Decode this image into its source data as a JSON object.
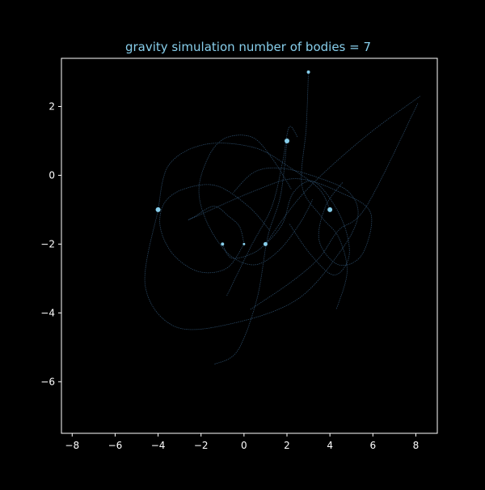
{
  "chart_data": {
    "type": "scatter",
    "title": "gravity simulation number of bodies = 7",
    "xlabel": "",
    "ylabel": "",
    "xlim": [
      -8.5,
      9
    ],
    "ylim": [
      -7.5,
      3.4
    ],
    "xticks": [
      -8,
      -6,
      -4,
      -2,
      0,
      2,
      4,
      6,
      8
    ],
    "yticks": [
      2,
      0,
      -2,
      -4,
      -6
    ],
    "grid": false,
    "colors": {
      "background": "#000000",
      "axes": "#ffffff",
      "title": "#87CEEB",
      "body": "#87CEEB",
      "trail": "#2a4a66"
    },
    "bodies": [
      {
        "x": 3,
        "y": 3,
        "size": 2
      },
      {
        "x": 2,
        "y": 1,
        "size": 3
      },
      {
        "x": -4,
        "y": -1,
        "size": 3
      },
      {
        "x": 4,
        "y": -1,
        "size": 3
      },
      {
        "x": -1,
        "y": -2,
        "size": 2
      },
      {
        "x": 0,
        "y": -2,
        "size": 1.5
      },
      {
        "x": 1,
        "y": -2,
        "size": 2.5
      }
    ],
    "trails": [
      [
        [
          -4,
          -1
        ],
        [
          -4.6,
          -3.2
        ],
        [
          -3.2,
          -4.4
        ],
        [
          -0.5,
          -4.3
        ],
        [
          2.5,
          -3.6
        ],
        [
          4.5,
          -2.2
        ],
        [
          5.3,
          -1.2
        ],
        [
          4.9,
          -0.5
        ],
        [
          3.6,
          -0.1
        ],
        [
          1.8,
          0.2
        ],
        [
          0.5,
          0.1
        ],
        [
          -0.5,
          -0.5
        ]
      ],
      [
        [
          -4,
          -1
        ],
        [
          -3.5,
          0.3
        ],
        [
          -1.8,
          0.9
        ],
        [
          0.5,
          0.8
        ],
        [
          2.2,
          0.2
        ],
        [
          3.5,
          -0.4
        ],
        [
          4,
          -1
        ]
      ],
      [
        [
          3,
          3
        ],
        [
          2.9,
          1.4
        ],
        [
          2.7,
          -0.3
        ],
        [
          3.6,
          -1.2
        ],
        [
          4.4,
          -1.8
        ],
        [
          4.8,
          -2.8
        ],
        [
          4.3,
          -3.9
        ]
      ],
      [
        [
          2,
          1
        ],
        [
          1.7,
          -0.6
        ],
        [
          1.1,
          -1.8
        ],
        [
          0.6,
          -3.6
        ],
        [
          -0.3,
          -5.1
        ],
        [
          -1.4,
          -5.5
        ]
      ],
      [
        [
          -1,
          -2
        ],
        [
          -0.6,
          -2.4
        ],
        [
          0.3,
          -2.3
        ],
        [
          1,
          -2
        ],
        [
          1.8,
          -1.4
        ],
        [
          2.3,
          -0.5
        ],
        [
          3.3,
          -0.2
        ],
        [
          4.5,
          -1.2
        ],
        [
          4.9,
          -2.3
        ],
        [
          4.2,
          -2.9
        ],
        [
          3.1,
          -2.3
        ],
        [
          2.1,
          -1.4
        ]
      ],
      [
        [
          0,
          -2
        ],
        [
          -0.2,
          -1.5
        ],
        [
          -0.7,
          -1.2
        ],
        [
          -1.4,
          -0.9
        ],
        [
          -2.3,
          -1.2
        ],
        [
          -2.6,
          -1.3
        ]
      ],
      [
        [
          1,
          -2
        ],
        [
          2.8,
          -0.5
        ],
        [
          5.6,
          1.1
        ],
        [
          8.2,
          2.3
        ]
      ],
      [
        [
          -2.6,
          -1.3
        ],
        [
          0.7,
          -0.4
        ],
        [
          2.5,
          -0.1
        ],
        [
          4.5,
          -0.5
        ],
        [
          5.9,
          -1.1
        ],
        [
          5.5,
          -2.3
        ],
        [
          4.4,
          -2.6
        ],
        [
          3.5,
          -1.9
        ],
        [
          3.8,
          -0.9
        ],
        [
          4.6,
          -0.2
        ]
      ],
      [
        [
          2.2,
          -0.4
        ],
        [
          1.3,
          0.5
        ],
        [
          0.4,
          1.1
        ],
        [
          -0.8,
          1.1
        ],
        [
          -1.6,
          0.6
        ],
        [
          -2.1,
          -0.4
        ],
        [
          -1.7,
          -1.4
        ],
        [
          -0.7,
          -2.3
        ],
        [
          0.5,
          -2.6
        ],
        [
          1.6,
          -2.2
        ],
        [
          2.6,
          -1.4
        ],
        [
          3.2,
          -0.7
        ]
      ],
      [
        [
          0,
          -2
        ],
        [
          -0.8,
          -2.7
        ],
        [
          -2.1,
          -2.8
        ],
        [
          -3.3,
          -2.3
        ],
        [
          -3.9,
          -1.5
        ],
        [
          -3.7,
          -0.8
        ],
        [
          -2.8,
          -0.4
        ],
        [
          -1.3,
          -0.3
        ],
        [
          0.2,
          -0.9
        ],
        [
          1.2,
          -1.6
        ]
      ],
      [
        [
          0.3,
          -3.9
        ],
        [
          2.2,
          -3.1
        ],
        [
          3.5,
          -2.4
        ],
        [
          4.4,
          -1.6
        ],
        [
          5.7,
          -0.9
        ],
        [
          8.1,
          2.1
        ]
      ],
      [
        [
          -0.8,
          -3.5
        ],
        [
          0.3,
          -2.1
        ],
        [
          1.3,
          -0.9
        ],
        [
          1.8,
          0.4
        ],
        [
          2.1,
          1.4
        ],
        [
          2.5,
          1.1
        ]
      ]
    ]
  }
}
